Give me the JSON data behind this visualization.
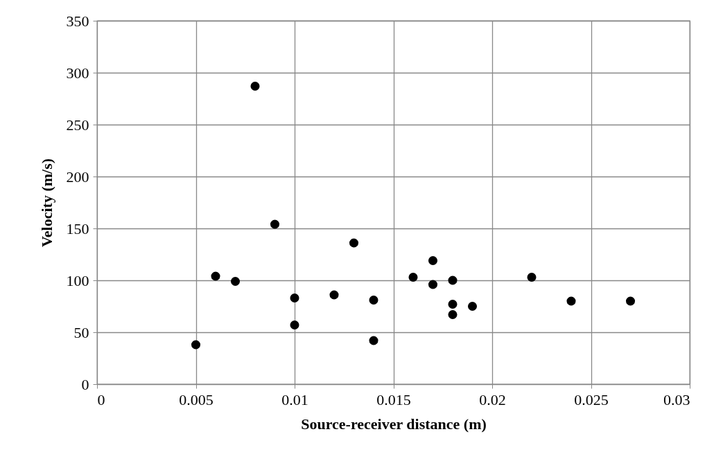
{
  "chart_data": {
    "type": "scatter",
    "xlabel": "Source-receiver distance (m)",
    "ylabel": "Velocity (m/s)",
    "x": [
      0.005,
      0.006,
      0.007,
      0.008,
      0.009,
      0.01,
      0.01,
      0.012,
      0.013,
      0.014,
      0.014,
      0.016,
      0.017,
      0.017,
      0.018,
      0.018,
      0.018,
      0.019,
      0.022,
      0.024,
      0.027
    ],
    "series": [
      {
        "color": "#000000",
        "values": [
          38,
          104,
          99,
          287,
          154,
          83,
          57,
          86,
          136,
          81,
          42,
          103,
          119,
          96,
          100,
          77,
          67,
          75,
          103,
          80,
          80
        ]
      }
    ],
    "xlim": [
      0,
      0.03
    ],
    "xticks": [
      0,
      0.005,
      0.01,
      0.015,
      0.02,
      0.025,
      0.03
    ],
    "ylim": [
      0,
      350
    ],
    "yticks": [
      0,
      50,
      100,
      150,
      200,
      250,
      300,
      350
    ],
    "grid": true,
    "marker": "circle"
  }
}
